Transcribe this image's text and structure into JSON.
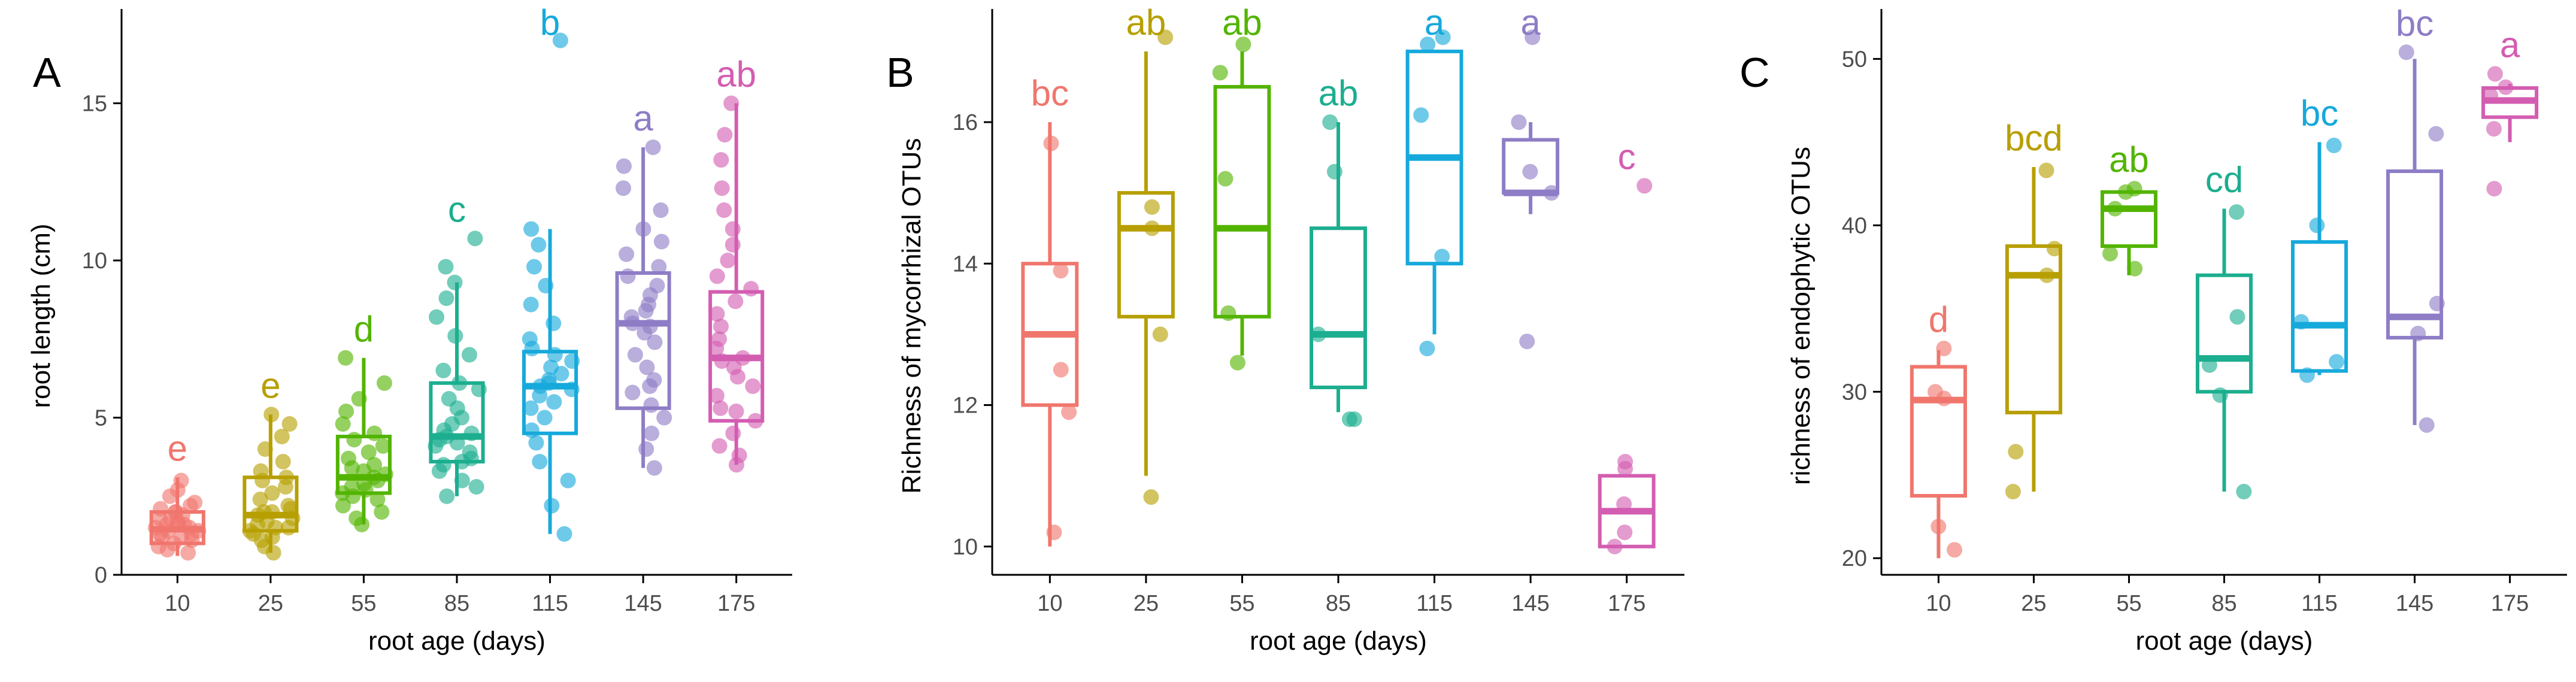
{
  "chart_data": [
    {
      "type": "box",
      "panel_letter": "A",
      "xlabel": "root age (days)",
      "ylabel": "root length (cm)",
      "categories": [
        "10",
        "25",
        "55",
        "85",
        "115",
        "145",
        "175"
      ],
      "ylim": [
        0,
        18
      ],
      "yticks": [
        0,
        5,
        10,
        15
      ],
      "colors": [
        "#F0766D",
        "#B79F00",
        "#53B400",
        "#1CAE8F",
        "#16A9DB",
        "#8E7DC6",
        "#D35DB1"
      ],
      "boxes": [
        {
          "q1": 1.0,
          "median": 1.45,
          "q3": 2.0,
          "whisker_low": 0.6,
          "whisker_high": 3.1
        },
        {
          "q1": 1.4,
          "median": 1.9,
          "q3": 3.1,
          "whisker_low": 0.7,
          "whisker_high": 5.1
        },
        {
          "q1": 2.6,
          "median": 3.1,
          "q3": 4.4,
          "whisker_low": 1.6,
          "whisker_high": 6.9
        },
        {
          "q1": 3.6,
          "median": 4.4,
          "q3": 6.1,
          "whisker_low": 2.5,
          "whisker_high": 9.3
        },
        {
          "q1": 4.5,
          "median": 6.0,
          "q3": 7.1,
          "whisker_low": 1.3,
          "whisker_high": 11.0
        },
        {
          "q1": 5.3,
          "median": 8.0,
          "q3": 9.6,
          "whisker_low": 3.4,
          "whisker_high": 13.6
        },
        {
          "q1": 4.9,
          "median": 6.9,
          "q3": 9.0,
          "whisker_low": 3.5,
          "whisker_high": 15.0
        }
      ],
      "letters": [
        "e",
        "e",
        "d",
        "c",
        "b",
        "a",
        "ab"
      ],
      "points": [
        [
          0.7,
          0.9,
          1.0,
          1.1,
          1.2,
          1.3,
          1.3,
          1.4,
          1.4,
          1.5,
          1.5,
          1.6,
          1.6,
          1.7,
          1.8,
          1.8,
          1.9,
          2.0,
          2.0,
          2.1,
          2.2,
          2.3,
          2.5,
          2.7,
          3.0,
          0.8,
          1.2,
          1.6
        ],
        [
          0.7,
          0.9,
          1.1,
          1.2,
          1.3,
          1.4,
          1.5,
          1.6,
          1.7,
          1.8,
          1.9,
          2.0,
          2.1,
          2.2,
          2.4,
          2.6,
          2.8,
          3.0,
          3.1,
          3.3,
          3.6,
          4.0,
          4.4,
          4.8,
          5.1,
          1.5,
          2.0
        ],
        [
          1.6,
          1.8,
          2.0,
          2.2,
          2.4,
          2.6,
          2.7,
          2.8,
          2.9,
          3.0,
          3.1,
          3.2,
          3.3,
          3.5,
          3.7,
          3.9,
          4.1,
          4.3,
          4.5,
          4.8,
          5.2,
          5.6,
          6.1,
          6.9,
          2.5,
          3.4
        ],
        [
          2.5,
          2.8,
          3.0,
          3.3,
          3.5,
          3.7,
          3.9,
          4.1,
          4.3,
          4.4,
          4.5,
          4.6,
          4.8,
          5.0,
          5.3,
          5.6,
          5.9,
          6.1,
          6.5,
          7.0,
          7.6,
          8.2,
          8.8,
          9.3,
          9.8,
          10.7,
          3.6,
          4.2
        ],
        [
          1.3,
          2.2,
          3.0,
          3.6,
          4.2,
          4.6,
          5.0,
          5.3,
          5.5,
          5.7,
          5.9,
          6.0,
          6.1,
          6.2,
          6.4,
          6.6,
          6.8,
          7.0,
          7.2,
          7.5,
          8.0,
          8.6,
          9.2,
          9.8,
          10.5,
          11.0,
          17.0
        ],
        [
          3.4,
          4.0,
          4.5,
          5.0,
          5.4,
          5.8,
          6.2,
          6.6,
          7.0,
          7.4,
          7.7,
          8.0,
          8.2,
          8.4,
          8.6,
          8.9,
          9.2,
          9.5,
          9.8,
          10.2,
          10.6,
          11.0,
          11.6,
          12.3,
          13.0,
          13.6,
          6.0,
          7.9
        ],
        [
          3.5,
          3.8,
          4.1,
          4.5,
          4.9,
          5.3,
          5.7,
          6.0,
          6.3,
          6.6,
          6.9,
          7.2,
          7.5,
          7.9,
          8.3,
          8.7,
          9.1,
          9.5,
          10.0,
          10.5,
          11.0,
          11.6,
          12.3,
          13.2,
          14.0,
          15.0,
          5.2,
          6.8
        ]
      ]
    },
    {
      "type": "box",
      "panel_letter": "B",
      "xlabel": "root age (days)",
      "ylabel": "Richness of mycorrhizal OTUs",
      "categories": [
        "10",
        "25",
        "55",
        "85",
        "115",
        "145",
        "175"
      ],
      "ylim": [
        9.6,
        17.6
      ],
      "yticks": [
        10,
        12,
        14,
        16
      ],
      "colors": [
        "#F0766D",
        "#B79F00",
        "#53B400",
        "#1CAE8F",
        "#16A9DB",
        "#8E7DC6",
        "#D35DB1"
      ],
      "boxes": [
        {
          "q1": 12.0,
          "median": 13.0,
          "q3": 14.0,
          "whisker_low": 10.0,
          "whisker_high": 16.0
        },
        {
          "q1": 13.25,
          "median": 14.5,
          "q3": 15.0,
          "whisker_low": 11.0,
          "whisker_high": 17.0
        },
        {
          "q1": 13.25,
          "median": 14.5,
          "q3": 16.5,
          "whisker_low": 12.7,
          "whisker_high": 17.0
        },
        {
          "q1": 12.25,
          "median": 13.0,
          "q3": 14.5,
          "whisker_low": 11.9,
          "whisker_high": 16.0
        },
        {
          "q1": 14.0,
          "median": 15.5,
          "q3": 17.0,
          "whisker_low": 13.0,
          "whisker_high": 17.0
        },
        {
          "q1": 15.0,
          "median": 15.0,
          "q3": 15.75,
          "whisker_low": 14.7,
          "whisker_high": 16.0
        },
        {
          "q1": 10.0,
          "median": 10.5,
          "q3": 11.0,
          "whisker_low": 10.0,
          "whisker_high": 11.0
        }
      ],
      "letters": [
        "bc",
        "ab",
        "ab",
        "ab",
        "a",
        "a",
        "c"
      ],
      "points": [
        [
          10.2,
          11.9,
          12.5,
          13.9,
          15.7
        ],
        [
          10.7,
          13.0,
          14.5,
          14.8,
          17.2
        ],
        [
          12.6,
          13.3,
          15.2,
          16.7,
          17.1
        ],
        [
          11.8,
          11.8,
          13.0,
          15.3,
          16.0
        ],
        [
          12.8,
          14.1,
          16.1,
          17.1,
          17.2
        ],
        [
          12.9,
          15.0,
          15.3,
          16.0,
          17.2
        ],
        [
          10.0,
          10.2,
          10.6,
          11.1,
          11.2,
          15.1
        ]
      ]
    },
    {
      "type": "box",
      "panel_letter": "C",
      "xlabel": "root age (days)",
      "ylabel": "richness of endophytic OTUs",
      "categories": [
        "10",
        "25",
        "55",
        "85",
        "115",
        "145",
        "175"
      ],
      "ylim": [
        19,
        53
      ],
      "yticks": [
        20,
        30,
        40,
        50
      ],
      "colors": [
        "#F0766D",
        "#B79F00",
        "#53B400",
        "#1CAE8F",
        "#16A9DB",
        "#8E7DC6",
        "#D35DB1"
      ],
      "boxes": [
        {
          "q1": 23.75,
          "median": 29.5,
          "q3": 31.5,
          "whisker_low": 20.0,
          "whisker_high": 32.5
        },
        {
          "q1": 28.75,
          "median": 37.0,
          "q3": 38.75,
          "whisker_low": 24.0,
          "whisker_high": 43.5
        },
        {
          "q1": 38.75,
          "median": 41.0,
          "q3": 42.0,
          "whisker_low": 37.0,
          "whisker_high": 42.0
        },
        {
          "q1": 30.0,
          "median": 32.0,
          "q3": 37.0,
          "whisker_low": 24.0,
          "whisker_high": 41.0
        },
        {
          "q1": 31.25,
          "median": 34.0,
          "q3": 39.0,
          "whisker_low": 31.0,
          "whisker_high": 45.0
        },
        {
          "q1": 33.25,
          "median": 34.5,
          "q3": 43.25,
          "whisker_low": 28.0,
          "whisker_high": 50.0
        },
        {
          "q1": 46.5,
          "median": 47.5,
          "q3": 48.25,
          "whisker_low": 45.0,
          "whisker_high": 48.5
        }
      ],
      "letters": [
        "d",
        "bcd",
        "ab",
        "cd",
        "bc",
        "bc",
        "a"
      ],
      "points": [
        [
          20.5,
          21.9,
          29.6,
          30.0,
          32.6
        ],
        [
          24.0,
          26.4,
          37.0,
          38.6,
          43.3
        ],
        [
          37.4,
          38.3,
          41.0,
          42.0,
          42.2
        ],
        [
          24.0,
          29.8,
          31.6,
          34.5,
          40.8
        ],
        [
          31.0,
          31.8,
          34.2,
          40.0,
          44.8
        ],
        [
          28.0,
          33.5,
          35.3,
          45.5,
          50.4
        ],
        [
          42.2,
          45.8,
          47.8,
          48.3,
          49.1
        ]
      ]
    }
  ]
}
